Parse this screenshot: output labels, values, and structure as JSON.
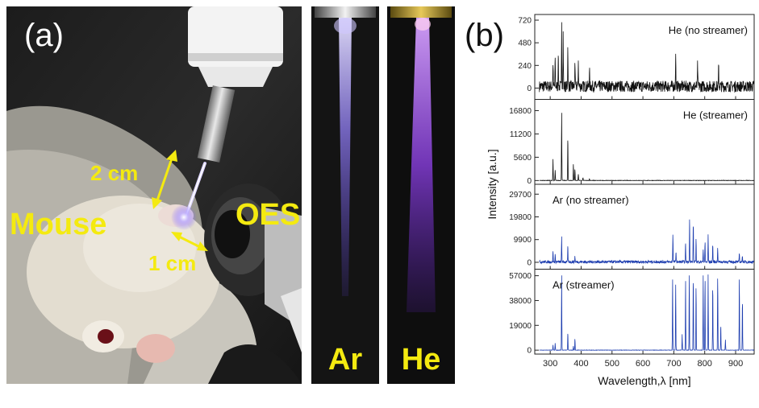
{
  "figure": {
    "panel_a_label": "(a)",
    "panel_b_label": "(b)"
  },
  "photo": {
    "label_distance_top": "2 cm",
    "label_distance_bottom": "1 cm",
    "label_subject": "Mouse",
    "label_detector": "OES",
    "strip_ar_label": "Ar",
    "strip_he_label": "He"
  },
  "chart_data": {
    "type": "line",
    "xlabel": "Wavelength,λ [nm]",
    "ylabel": "Intensity [a.u.]",
    "xlim": [
      250,
      960
    ],
    "x_ticks": [
      300,
      400,
      500,
      600,
      700,
      800,
      900
    ],
    "x_tick_labels": [
      "300",
      "400",
      "500",
      "600",
      "700",
      "800",
      "900"
    ],
    "panels": [
      {
        "name": "He (no streamer)",
        "color": "#111111",
        "ylim": [
          -120,
          780
        ],
        "y_ticks": [
          0,
          240,
          480,
          720
        ],
        "y_tick_labels": [
          "0",
          "240",
          "480",
          "720"
        ],
        "noise": 120,
        "peaks": [
          [
            309,
            260
          ],
          [
            316,
            320
          ],
          [
            326,
            380
          ],
          [
            337,
            720
          ],
          [
            342,
            560
          ],
          [
            357,
            460
          ],
          [
            380,
            300
          ],
          [
            391,
            280
          ],
          [
            427,
            200
          ],
          [
            706,
            330
          ],
          [
            777,
            250
          ],
          [
            845,
            220
          ]
        ]
      },
      {
        "name": "He (streamer)",
        "color": "#111111",
        "ylim": [
          -900,
          19500
        ],
        "y_ticks": [
          0,
          5600,
          11200,
          16800
        ],
        "y_tick_labels": [
          "0",
          "5600",
          "11200",
          "16800"
        ],
        "noise": 100,
        "peaks": [
          [
            309,
            5200
          ],
          [
            316,
            2500
          ],
          [
            337,
            16500
          ],
          [
            357,
            10800
          ],
          [
            375,
            4000
          ],
          [
            380,
            2800
          ],
          [
            391,
            1500
          ],
          [
            406,
            700
          ],
          [
            427,
            400
          ]
        ]
      },
      {
        "name": "Ar (no streamer)",
        "color": "#1f3fb0",
        "ylim": [
          -3000,
          34000
        ],
        "y_ticks": [
          0,
          9900,
          19800,
          29700
        ],
        "y_tick_labels": [
          "0",
          "9900",
          "19800",
          "29700"
        ],
        "noise": 1200,
        "peaks": [
          [
            309,
            5000
          ],
          [
            316,
            3000
          ],
          [
            337,
            11000
          ],
          [
            357,
            7000
          ],
          [
            380,
            2500
          ],
          [
            697,
            12000
          ],
          [
            707,
            5000
          ],
          [
            738,
            9000
          ],
          [
            751,
            20000
          ],
          [
            763,
            18000
          ],
          [
            772,
            10000
          ],
          [
            795,
            6000
          ],
          [
            801,
            9000
          ],
          [
            811,
            12000
          ],
          [
            826,
            8000
          ],
          [
            842,
            6000
          ],
          [
            912,
            4000
          ],
          [
            922,
            3000
          ]
        ]
      },
      {
        "name": "Ar (streamer)",
        "color": "#1f3fb0",
        "ylim": [
          -3000,
          62000
        ],
        "y_ticks": [
          0,
          19000,
          38000,
          57000
        ],
        "y_tick_labels": [
          "0",
          "19000",
          "38000",
          "57000"
        ],
        "noise": 250,
        "peaks": [
          [
            309,
            4000
          ],
          [
            316,
            5500
          ],
          [
            337,
            58000
          ],
          [
            357,
            14000
          ],
          [
            375,
            3000
          ],
          [
            380,
            9000
          ],
          [
            696,
            57000
          ],
          [
            706,
            50000
          ],
          [
            727,
            12000
          ],
          [
            738,
            56000
          ],
          [
            750,
            58000
          ],
          [
            763,
            58000
          ],
          [
            772,
            50000
          ],
          [
            795,
            58000
          ],
          [
            801,
            56000
          ],
          [
            811,
            58000
          ],
          [
            826,
            52000
          ],
          [
            842,
            58000
          ],
          [
            852,
            20000
          ],
          [
            867,
            8000
          ],
          [
            912,
            57000
          ],
          [
            922,
            40000
          ]
        ]
      }
    ]
  }
}
